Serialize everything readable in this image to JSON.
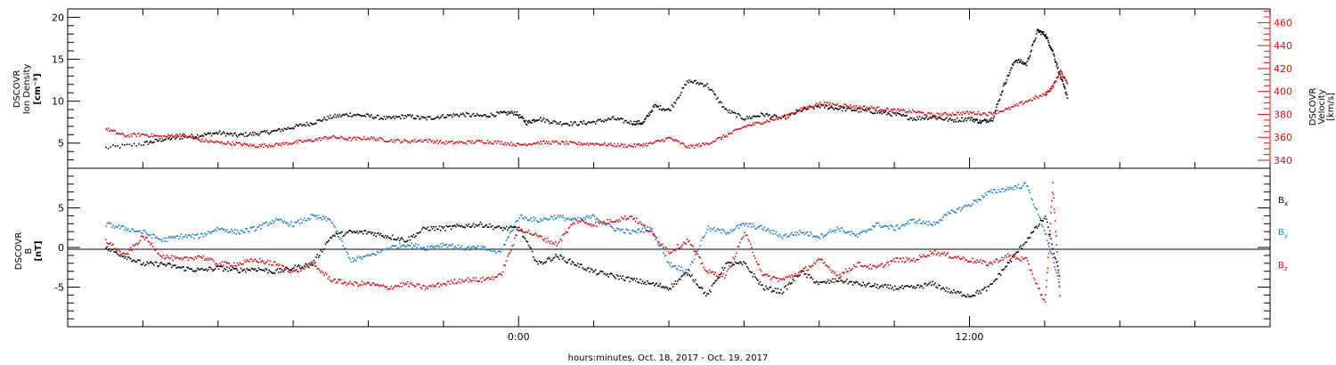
{
  "chart_data": [
    {
      "type": "line",
      "panel": "top",
      "ylabel": {
        "line1": "DSCOVR",
        "line2": "Ion Density",
        "line3": "[cm⁻³]"
      },
      "ylabel_right": {
        "line1": "DSCOVR",
        "line2": "Velocity",
        "line3": "[km/s]"
      },
      "ylim": [
        2,
        21
      ],
      "yticks": [
        "5",
        "10",
        "15",
        "20"
      ],
      "ylim_right": [
        333,
        472
      ],
      "yticks_right": [
        "340",
        "360",
        "380",
        "400",
        "420",
        "440",
        "460"
      ],
      "series": [
        {
          "color": "#000000",
          "axis": "left",
          "x": [
            -11.0,
            -10.0,
            -9.5,
            -9.0,
            -8.5,
            -8.0,
            -7.5,
            -7.0,
            -6.5,
            -6.0,
            -5.5,
            -5.0,
            -4.5,
            -4.0,
            -3.5,
            -3.0,
            -2.5,
            -2.0,
            -1.5,
            -1.0,
            -0.5,
            -0.1,
            0.2,
            0.5,
            1.0,
            1.5,
            2.0,
            2.5,
            3.0,
            3.3,
            3.6,
            4.0,
            4.5,
            5.0,
            5.5,
            6.0,
            6.5,
            7.0,
            7.5,
            8.0,
            8.5,
            9.0,
            9.5,
            10.0,
            10.5,
            11.0,
            11.5,
            12.0,
            12.3,
            12.6,
            12.9,
            13.2,
            13.5,
            13.8,
            14.0,
            14.2,
            14.4,
            14.6
          ],
          "values": [
            4.5,
            5.0,
            5.5,
            5.8,
            6.0,
            6.3,
            6.0,
            6.2,
            6.5,
            7.0,
            7.5,
            8.2,
            8.5,
            8.3,
            8.0,
            8.3,
            8.0,
            8.3,
            8.5,
            8.3,
            8.6,
            8.7,
            7.5,
            8.0,
            7.5,
            7.4,
            7.6,
            8.0,
            7.5,
            7.5,
            9.5,
            9.0,
            12.5,
            12.0,
            9.0,
            8.0,
            8.5,
            8.0,
            9.0,
            9.5,
            9.2,
            9.0,
            8.8,
            8.5,
            8.0,
            8.2,
            7.8,
            8.0,
            7.6,
            8.0,
            12.0,
            15.0,
            14.5,
            18.5,
            18.0,
            16.0,
            13.0,
            10.5
          ]
        },
        {
          "color": "#dd1111",
          "axis": "right",
          "x": [
            -11.0,
            -10.5,
            -10.0,
            -9.5,
            -9.0,
            -8.5,
            -8.0,
            -7.5,
            -7.0,
            -6.5,
            -6.0,
            -5.5,
            -5.0,
            -4.5,
            -4.0,
            -3.5,
            -3.0,
            -2.5,
            -2.0,
            -1.5,
            -1.0,
            -0.5,
            0.0,
            0.5,
            1.0,
            1.5,
            2.0,
            2.5,
            3.0,
            3.5,
            4.0,
            4.5,
            5.0,
            5.5,
            6.0,
            6.5,
            7.0,
            7.5,
            8.0,
            8.5,
            9.0,
            9.5,
            10.0,
            10.5,
            11.0,
            11.5,
            12.0,
            12.5,
            13.0,
            13.5,
            14.0,
            14.2,
            14.4,
            14.6
          ],
          "values": [
            368,
            362,
            363,
            361,
            363,
            358,
            356,
            355,
            353,
            354,
            356,
            358,
            361,
            359,
            360,
            358,
            357,
            358,
            356,
            356,
            357,
            356,
            354,
            356,
            356,
            355,
            355,
            354,
            353,
            355,
            360,
            352,
            355,
            362,
            370,
            374,
            378,
            385,
            390,
            389,
            387,
            386,
            384,
            383,
            380,
            381,
            382,
            381,
            385,
            392,
            398,
            405,
            418,
            408
          ]
        }
      ]
    },
    {
      "type": "line",
      "panel": "bottom",
      "ylabel": {
        "line1": "DSCOVR",
        "line2": "B",
        "line3": "[nT]"
      },
      "ylim": [
        -10,
        10
      ],
      "yticks": [
        "-5",
        "0",
        "5"
      ],
      "xlabel": "hours:minutes, Oct. 18, 2017 - Oct. 19, 2017",
      "xticks": [
        "0:00",
        "12:00"
      ],
      "xlim": [
        -12.0,
        20.0
      ],
      "legend": [
        "B",
        "B",
        "B"
      ],
      "legend_sub": [
        "x",
        "y",
        "z"
      ],
      "series": [
        {
          "color": "#000000",
          "name": "Bx",
          "x": [
            -11.0,
            -10.5,
            -10.0,
            -9.5,
            -9.0,
            -8.5,
            -8.0,
            -7.5,
            -7.0,
            -6.5,
            -6.0,
            -5.5,
            -5.0,
            -4.5,
            -4.0,
            -3.5,
            -3.0,
            -2.5,
            -2.0,
            -1.5,
            -1.0,
            -0.5,
            0.0,
            0.5,
            1.0,
            1.5,
            2.0,
            2.5,
            3.0,
            3.5,
            4.0,
            4.5,
            5.0,
            5.5,
            6.0,
            6.5,
            7.0,
            7.5,
            8.0,
            8.5,
            9.0,
            9.5,
            10.0,
            10.5,
            11.0,
            11.5,
            12.0,
            12.5,
            13.0,
            13.5,
            14.0,
            14.4
          ],
          "values": [
            0.0,
            -1.0,
            -2.0,
            -2.0,
            -2.5,
            -2.8,
            -2.5,
            -2.8,
            -2.6,
            -3.0,
            -2.5,
            -2.0,
            1.5,
            2.0,
            2.0,
            1.5,
            1.0,
            2.5,
            2.5,
            2.8,
            3.0,
            2.5,
            2.5,
            -2.0,
            -1.0,
            -2.0,
            -3.0,
            -3.5,
            -4.0,
            -4.5,
            -5.0,
            -3.0,
            -6.0,
            -2.0,
            -2.0,
            -5.0,
            -5.5,
            -3.0,
            -4.5,
            -4.0,
            -4.5,
            -4.8,
            -5.0,
            -5.0,
            -4.5,
            -5.5,
            -6.0,
            -5.0,
            -2.0,
            1.0,
            4.0,
            -4.0
          ]
        },
        {
          "color": "#1a7fd4",
          "name": "By",
          "x": [
            -11.0,
            -10.5,
            -10.0,
            -9.5,
            -9.0,
            -8.5,
            -8.0,
            -7.5,
            -7.0,
            -6.5,
            -6.0,
            -5.5,
            -5.0,
            -4.5,
            -4.0,
            -3.5,
            -3.0,
            -2.5,
            -2.0,
            -1.5,
            -1.0,
            -0.5,
            0.0,
            0.5,
            1.0,
            1.5,
            2.0,
            2.5,
            3.0,
            3.5,
            4.0,
            4.5,
            5.0,
            5.5,
            6.0,
            6.5,
            7.0,
            7.5,
            8.0,
            8.5,
            9.0,
            9.5,
            10.0,
            10.5,
            11.0,
            11.5,
            12.0,
            12.5,
            13.0,
            13.5,
            14.0,
            14.4
          ],
          "values": [
            3.0,
            2.5,
            2.0,
            1.0,
            1.5,
            1.5,
            2.5,
            2.0,
            2.5,
            3.5,
            3.0,
            4.0,
            3.5,
            -1.5,
            -1.0,
            0.0,
            0.5,
            0.0,
            0.5,
            0.0,
            0.0,
            -0.5,
            4.0,
            3.5,
            4.0,
            3.5,
            4.0,
            2.5,
            2.0,
            2.5,
            -2.0,
            -3.0,
            2.5,
            2.0,
            3.0,
            2.5,
            1.5,
            2.0,
            1.5,
            2.5,
            1.5,
            3.0,
            2.5,
            3.5,
            3.0,
            4.5,
            5.5,
            7.0,
            7.5,
            8.0,
            2.0,
            -5.0
          ]
        },
        {
          "color": "#dd1111",
          "name": "Bz",
          "x": [
            -11.0,
            -10.5,
            -10.0,
            -9.5,
            -9.0,
            -8.5,
            -8.0,
            -7.5,
            -7.0,
            -6.5,
            -6.0,
            -5.5,
            -5.0,
            -4.5,
            -4.0,
            -3.5,
            -3.0,
            -2.5,
            -2.0,
            -1.5,
            -1.0,
            -0.5,
            0.0,
            0.5,
            1.0,
            1.5,
            2.0,
            2.5,
            3.0,
            3.5,
            4.0,
            4.5,
            5.0,
            5.5,
            6.0,
            6.5,
            7.0,
            7.5,
            8.0,
            8.5,
            9.0,
            9.5,
            10.0,
            10.5,
            11.0,
            11.5,
            12.0,
            12.5,
            13.0,
            13.5,
            14.0,
            14.2,
            14.4
          ],
          "values": [
            1.0,
            -1.0,
            1.5,
            -1.0,
            -1.5,
            -1.0,
            -2.0,
            -2.0,
            -1.5,
            -2.0,
            -3.0,
            -2.0,
            -4.0,
            -4.5,
            -4.5,
            -5.0,
            -4.5,
            -5.0,
            -4.5,
            -4.0,
            -4.0,
            -3.5,
            2.5,
            1.5,
            0.5,
            3.5,
            3.0,
            3.5,
            4.0,
            2.0,
            -0.5,
            1.0,
            -3.0,
            -3.5,
            2.0,
            -3.5,
            -4.0,
            -3.0,
            -1.5,
            -3.5,
            -2.0,
            -2.5,
            -1.5,
            -1.5,
            -0.5,
            -1.0,
            -1.5,
            -2.0,
            -1.0,
            -1.5,
            -7.0,
            8.0,
            -7.0
          ]
        }
      ]
    }
  ]
}
